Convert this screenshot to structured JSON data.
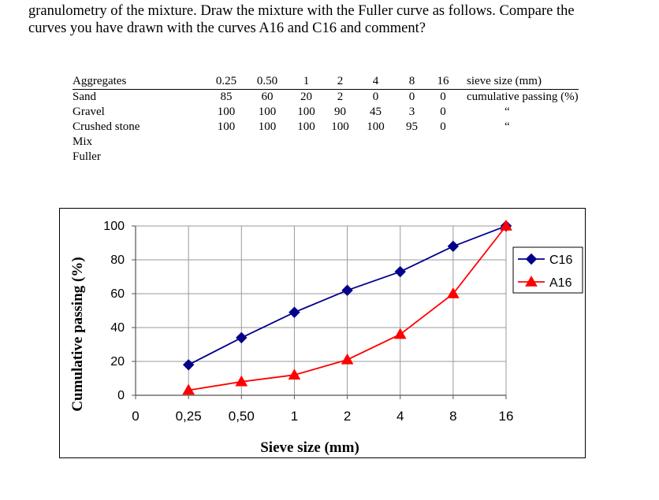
{
  "intro_lines": [
    "granulometry of the mixture. Draw the mixture with the Fuller curve as follows. Compare the",
    "curves you have drawn with the curves A16 and C16 and comment?"
  ],
  "table": {
    "header": {
      "label": "Aggregates",
      "sizes": [
        "0.25",
        "0.50",
        "1",
        "2",
        "4",
        "8",
        "16"
      ],
      "unit": "sieve size (mm)"
    },
    "rows": [
      {
        "label": "Sand",
        "values": [
          "85",
          "60",
          "20",
          "2",
          "0",
          "0",
          "0"
        ],
        "unit": "cumulative passing (%)"
      },
      {
        "label": "Gravel",
        "values": [
          "100",
          "100",
          "100",
          "90",
          "45",
          "3",
          "0"
        ],
        "unit": "“"
      },
      {
        "label": "Crushed stone",
        "values": [
          "100",
          "100",
          "100",
          "100",
          "100",
          "95",
          "0"
        ],
        "unit": "“"
      },
      {
        "label": "Mix",
        "values": [
          "",
          "",
          "",
          "",
          "",
          "",
          ""
        ],
        "unit": ""
      },
      {
        "label": "Fuller",
        "values": [
          "",
          "",
          "",
          "",
          "",
          "",
          ""
        ],
        "unit": ""
      }
    ]
  },
  "chart_data": {
    "type": "line",
    "xlabel": "Sieve size (mm)",
    "ylabel": "Cumulative passing (%)",
    "x_ticks": [
      "0",
      "0,25",
      "0,50",
      "1",
      "2",
      "4",
      "8",
      "16"
    ],
    "y_ticks": [
      "0",
      "20",
      "40",
      "60",
      "80",
      "100"
    ],
    "ylim": [
      0,
      100
    ],
    "grid": true,
    "legend_position": "right",
    "series": [
      {
        "name": "C16",
        "color": "#00008B",
        "marker": "diamond",
        "x": [
          "0,25",
          "0,50",
          "1",
          "2",
          "4",
          "8",
          "16"
        ],
        "values": [
          18,
          34,
          49,
          62,
          73,
          88,
          100
        ]
      },
      {
        "name": "A16",
        "color": "#FF0000",
        "marker": "triangle",
        "x": [
          "0,25",
          "0,50",
          "1",
          "2",
          "4",
          "8",
          "16"
        ],
        "values": [
          3,
          8,
          12,
          21,
          36,
          60,
          100
        ]
      }
    ]
  }
}
